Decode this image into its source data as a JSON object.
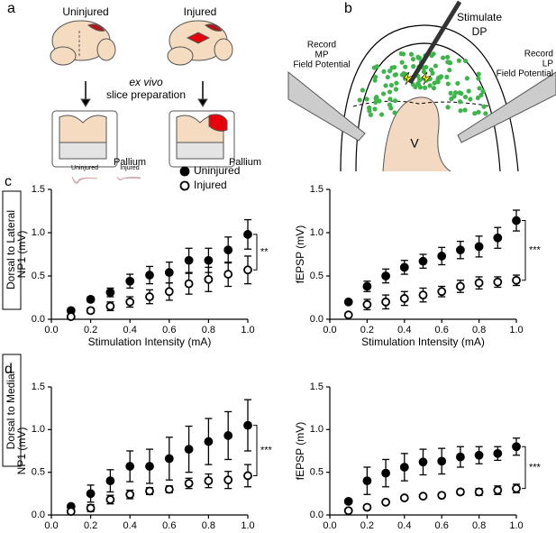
{
  "panel_labels": [
    "a",
    "b",
    "c",
    "d"
  ],
  "diagram_a": {
    "uninjured": "Uninjured",
    "injured": "Injured",
    "ex_vivo": "ex vivo",
    "slice_prep": "slice preparation",
    "pallium": [
      "Pallium",
      "Pallium"
    ]
  },
  "diagram_b": {
    "stimulate": [
      "Stimulate",
      "DP"
    ],
    "record_mp": [
      "Record",
      "MP",
      "Field Potential"
    ],
    "record_lp": [
      "Record",
      "LP",
      "Field Potential"
    ],
    "ventricle": "V"
  },
  "row_labels": [
    "Dorsal to Lateral",
    "Dorsal to Medial"
  ],
  "chart_data": [
    {
      "type": "scatter",
      "xlabel": "Stimulation Intensity (mA)",
      "ylabel": "NP1 (mV)",
      "x": [
        0.1,
        0.2,
        0.3,
        0.4,
        0.5,
        0.6,
        0.7,
        0.8,
        0.9,
        1.0
      ],
      "xlim": [
        0,
        1
      ],
      "ylim": [
        0,
        1.5
      ],
      "xticks": [
        {
          "value": 0,
          "label": "0.0"
        },
        {
          "value": 0.2,
          "label": "0.2"
        },
        {
          "value": 0.4,
          "label": "0.4"
        },
        {
          "value": 0.6,
          "label": "0.6"
        },
        {
          "value": 0.8,
          "label": "0.8"
        },
        {
          "value": 1,
          "label": "1.0"
        }
      ],
      "yticks": [
        {
          "value": 0,
          "label": "0.0"
        },
        {
          "value": 0.5,
          "label": "0.5"
        },
        {
          "value": 1,
          "label": "1.0"
        },
        {
          "value": 1.5,
          "label": "1.5"
        }
      ],
      "legend": "top",
      "inset_labels": [
        "Uninjured",
        "Injured"
      ],
      "significance": "**",
      "series": [
        {
          "name": "Uninjured",
          "color": "#000000",
          "fill": "#000000",
          "values": [
            0.1,
            0.23,
            0.31,
            0.44,
            0.51,
            0.54,
            0.68,
            0.68,
            0.8,
            0.98
          ],
          "errors": [
            0.02,
            0.03,
            0.05,
            0.08,
            0.1,
            0.12,
            0.14,
            0.14,
            0.15,
            0.17
          ]
        },
        {
          "name": "Injured",
          "color": "#000000",
          "fill": "#ffffff",
          "values": [
            0.03,
            0.1,
            0.15,
            0.2,
            0.26,
            0.32,
            0.41,
            0.46,
            0.52,
            0.57
          ],
          "errors": [
            0.01,
            0.03,
            0.05,
            0.06,
            0.08,
            0.1,
            0.12,
            0.14,
            0.14,
            0.16
          ]
        }
      ]
    },
    {
      "type": "scatter",
      "xlabel": "Stimulation Intensity (mA)",
      "ylabel": "fEPSP (mV)",
      "x": [
        0.1,
        0.2,
        0.3,
        0.4,
        0.5,
        0.6,
        0.7,
        0.8,
        0.9,
        1.0
      ],
      "xlim": [
        0,
        1
      ],
      "ylim": [
        0,
        1.5
      ],
      "xticks": [
        {
          "value": 0,
          "label": "0.0"
        },
        {
          "value": 0.2,
          "label": "0.2"
        },
        {
          "value": 0.4,
          "label": "0.4"
        },
        {
          "value": 0.6,
          "label": "0.6"
        },
        {
          "value": 0.8,
          "label": "0.8"
        },
        {
          "value": 1,
          "label": "1.0"
        }
      ],
      "yticks": [
        {
          "value": 0,
          "label": "0.0"
        },
        {
          "value": 0.5,
          "label": "0.5"
        },
        {
          "value": 1,
          "label": "1.0"
        },
        {
          "value": 1.5,
          "label": "1.5"
        }
      ],
      "significance": "***",
      "series": [
        {
          "color": "#000000",
          "fill": "#000000",
          "values": [
            0.2,
            0.38,
            0.5,
            0.6,
            0.67,
            0.73,
            0.8,
            0.84,
            0.94,
            1.14
          ],
          "errors": [
            0.02,
            0.06,
            0.08,
            0.08,
            0.08,
            0.1,
            0.1,
            0.12,
            0.12,
            0.12
          ]
        },
        {
          "color": "#000000",
          "fill": "#ffffff",
          "values": [
            0.05,
            0.17,
            0.2,
            0.24,
            0.28,
            0.32,
            0.38,
            0.42,
            0.43,
            0.45
          ],
          "errors": [
            0.01,
            0.06,
            0.08,
            0.08,
            0.08,
            0.06,
            0.07,
            0.07,
            0.06,
            0.06
          ]
        }
      ]
    },
    {
      "type": "scatter",
      "xlabel": "Stimulation Intensity (mA)",
      "ylabel": "NP1 (mV)",
      "x": [
        0.1,
        0.2,
        0.3,
        0.4,
        0.5,
        0.6,
        0.7,
        0.8,
        0.9,
        1.0
      ],
      "xlim": [
        0,
        1
      ],
      "ylim": [
        0,
        1.5
      ],
      "xticks": [
        {
          "value": 0,
          "label": "0.0"
        },
        {
          "value": 0.2,
          "label": "0.2"
        },
        {
          "value": 0.4,
          "label": "0.4"
        },
        {
          "value": 0.6,
          "label": "0.6"
        },
        {
          "value": 0.8,
          "label": "0.8"
        },
        {
          "value": 1,
          "label": "1.0"
        }
      ],
      "yticks": [
        {
          "value": 0,
          "label": "0.0"
        },
        {
          "value": 0.5,
          "label": "0.5"
        },
        {
          "value": 1,
          "label": "1.0"
        },
        {
          "value": 1.5,
          "label": "1.5"
        }
      ],
      "significance": "***",
      "series": [
        {
          "color": "#000000",
          "fill": "#000000",
          "values": [
            0.1,
            0.25,
            0.4,
            0.57,
            0.57,
            0.66,
            0.77,
            0.86,
            0.93,
            1.05
          ],
          "errors": [
            0.02,
            0.1,
            0.13,
            0.18,
            0.2,
            0.25,
            0.27,
            0.27,
            0.28,
            0.3
          ]
        },
        {
          "color": "#000000",
          "fill": "#ffffff",
          "values": [
            0.04,
            0.08,
            0.18,
            0.24,
            0.28,
            0.3,
            0.37,
            0.4,
            0.41,
            0.46
          ],
          "errors": [
            0.02,
            0.04,
            0.05,
            0.05,
            0.04,
            0.04,
            0.06,
            0.08,
            0.1,
            0.13
          ]
        }
      ]
    },
    {
      "type": "scatter",
      "xlabel": "Stimulation Intensity (mA)",
      "ylabel": "fEPSP (mV)",
      "x": [
        0.1,
        0.2,
        0.3,
        0.4,
        0.5,
        0.6,
        0.7,
        0.8,
        0.9,
        1.0
      ],
      "xlim": [
        0,
        1
      ],
      "ylim": [
        0,
        1.5
      ],
      "xticks": [
        {
          "value": 0,
          "label": "0.0"
        },
        {
          "value": 0.2,
          "label": "0.2"
        },
        {
          "value": 0.4,
          "label": "0.4"
        },
        {
          "value": 0.6,
          "label": "0.6"
        },
        {
          "value": 0.8,
          "label": "0.8"
        },
        {
          "value": 1,
          "label": "1.0"
        }
      ],
      "yticks": [
        {
          "value": 0,
          "label": "0.0"
        },
        {
          "value": 0.5,
          "label": "0.5"
        },
        {
          "value": 1,
          "label": "1.0"
        },
        {
          "value": 1.5,
          "label": "1.5"
        }
      ],
      "significance": "***",
      "series": [
        {
          "color": "#000000",
          "fill": "#000000",
          "values": [
            0.16,
            0.4,
            0.49,
            0.56,
            0.62,
            0.63,
            0.68,
            0.7,
            0.72,
            0.8
          ],
          "errors": [
            0.02,
            0.16,
            0.16,
            0.16,
            0.15,
            0.15,
            0.12,
            0.1,
            0.08,
            0.1
          ]
        },
        {
          "color": "#000000",
          "fill": "#ffffff",
          "values": [
            0.05,
            0.09,
            0.15,
            0.2,
            0.22,
            0.23,
            0.27,
            0.27,
            0.29,
            0.31
          ],
          "errors": [
            0.01,
            0.02,
            0.02,
            0.02,
            0.02,
            0.02,
            0.03,
            0.04,
            0.05,
            0.05
          ]
        }
      ]
    }
  ]
}
